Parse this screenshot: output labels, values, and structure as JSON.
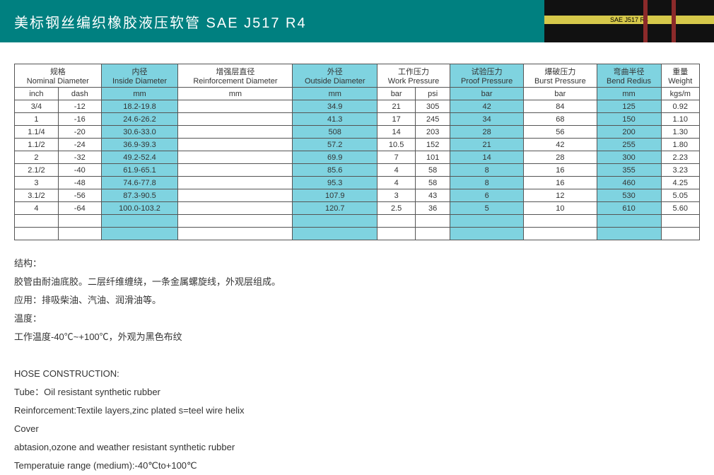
{
  "header": {
    "title_cn": "美标钢丝编织橡胶液压软管 SAE  J517 R4",
    "hose_label": "SAE J517 R4"
  },
  "table": {
    "head1": {
      "nominal_cn": "规格",
      "nominal_en": "Nominal Diameter",
      "inside_cn": "内径",
      "inside_en": "Inside Diameter",
      "reinf_cn": "增强层直径",
      "reinf_en": "Reinforcement Diameter",
      "outside_cn": "外径",
      "outside_en": "Outside Diameter",
      "work_cn": "工作压力",
      "work_en": "Work Pressure",
      "proof_cn": "试验压力",
      "proof_en": "Proof Pressure",
      "burst_cn": "爆破压力",
      "burst_en": "Burst Pressure",
      "bend_cn": "弯曲半径",
      "bend_en": "Bend Redius",
      "weight_cn": "重量",
      "weight_en": "Weight"
    },
    "units": {
      "inch": "inch",
      "dash": "dash",
      "mm": "mm",
      "bar": "bar",
      "psi": "psi",
      "kgsm": "kgs/m"
    },
    "rows": [
      {
        "inch": "3/4",
        "dash": "-12",
        "id": "18.2-19.8",
        "rd": "",
        "od": "34.9",
        "wbar": "21",
        "wpsi": "305",
        "proof": "42",
        "burst": "84",
        "bend": "125",
        "wt": "0.92"
      },
      {
        "inch": "1",
        "dash": "-16",
        "id": "24.6-26.2",
        "rd": "",
        "od": "41.3",
        "wbar": "17",
        "wpsi": "245",
        "proof": "34",
        "burst": "68",
        "bend": "150",
        "wt": "1.10"
      },
      {
        "inch": "1.1/4",
        "dash": "-20",
        "id": "30.6-33.0",
        "rd": "",
        "od": "508",
        "wbar": "14",
        "wpsi": "203",
        "proof": "28",
        "burst": "56",
        "bend": "200",
        "wt": "1.30"
      },
      {
        "inch": "1.1/2",
        "dash": "-24",
        "id": "36.9-39.3",
        "rd": "",
        "od": "57.2",
        "wbar": "10.5",
        "wpsi": "152",
        "proof": "21",
        "burst": "42",
        "bend": "255",
        "wt": "1.80"
      },
      {
        "inch": "2",
        "dash": "-32",
        "id": "49.2-52.4",
        "rd": "",
        "od": "69.9",
        "wbar": "7",
        "wpsi": "101",
        "proof": "14",
        "burst": "28",
        "bend": "300",
        "wt": "2.23"
      },
      {
        "inch": "2.1/2",
        "dash": "-40",
        "id": "61.9-65.1",
        "rd": "",
        "od": "85.6",
        "wbar": "4",
        "wpsi": "58",
        "proof": "8",
        "burst": "16",
        "bend": "355",
        "wt": "3.23"
      },
      {
        "inch": "3",
        "dash": "-48",
        "id": "74.6-77.8",
        "rd": "",
        "od": "95.3",
        "wbar": "4",
        "wpsi": "58",
        "proof": "8",
        "burst": "16",
        "bend": "460",
        "wt": "4.25"
      },
      {
        "inch": "3.1/2",
        "dash": "-56",
        "id": "87.3-90.5",
        "rd": "",
        "od": "107.9",
        "wbar": "3",
        "wpsi": "43",
        "proof": "6",
        "burst": "12",
        "bend": "530",
        "wt": "5.05"
      },
      {
        "inch": "4",
        "dash": "-64",
        "id": "100.0-103.2",
        "rd": "",
        "od": "120.7",
        "wbar": "2.5",
        "wpsi": "36",
        "proof": "5",
        "burst": "10",
        "bend": "610",
        "wt": "5.60"
      }
    ],
    "highlight_cols": [
      "id",
      "od",
      "proof",
      "bend"
    ],
    "colors": {
      "highlight": "#7fd3e0",
      "border": "#555555",
      "header_bg": "#008080"
    }
  },
  "desc_cn": {
    "l1": "结构：",
    "l2": "胶管由耐油底胶。二层纤维缠绕，一条金属螺旋线，外观层组成。",
    "l3": "应用：排吸柴油、汽油、润滑油等。",
    "l4": "温度：",
    "l5": "工作温度-40℃~+100℃，外观为黑色布纹"
  },
  "desc_en": {
    "l1": "HOSE CONSTRUCTION:",
    "l2": "Tube：Oil resistant synthetic rubber",
    "l3": "Reinforcement:Textile layers,zinc plated s=teel wire helix",
    "l4": "Cover",
    "l5": "abtasion,ozone and weather resistant synthetic rubber",
    "l6": "Temperatuie range (medium):-40℃to+100℃"
  }
}
